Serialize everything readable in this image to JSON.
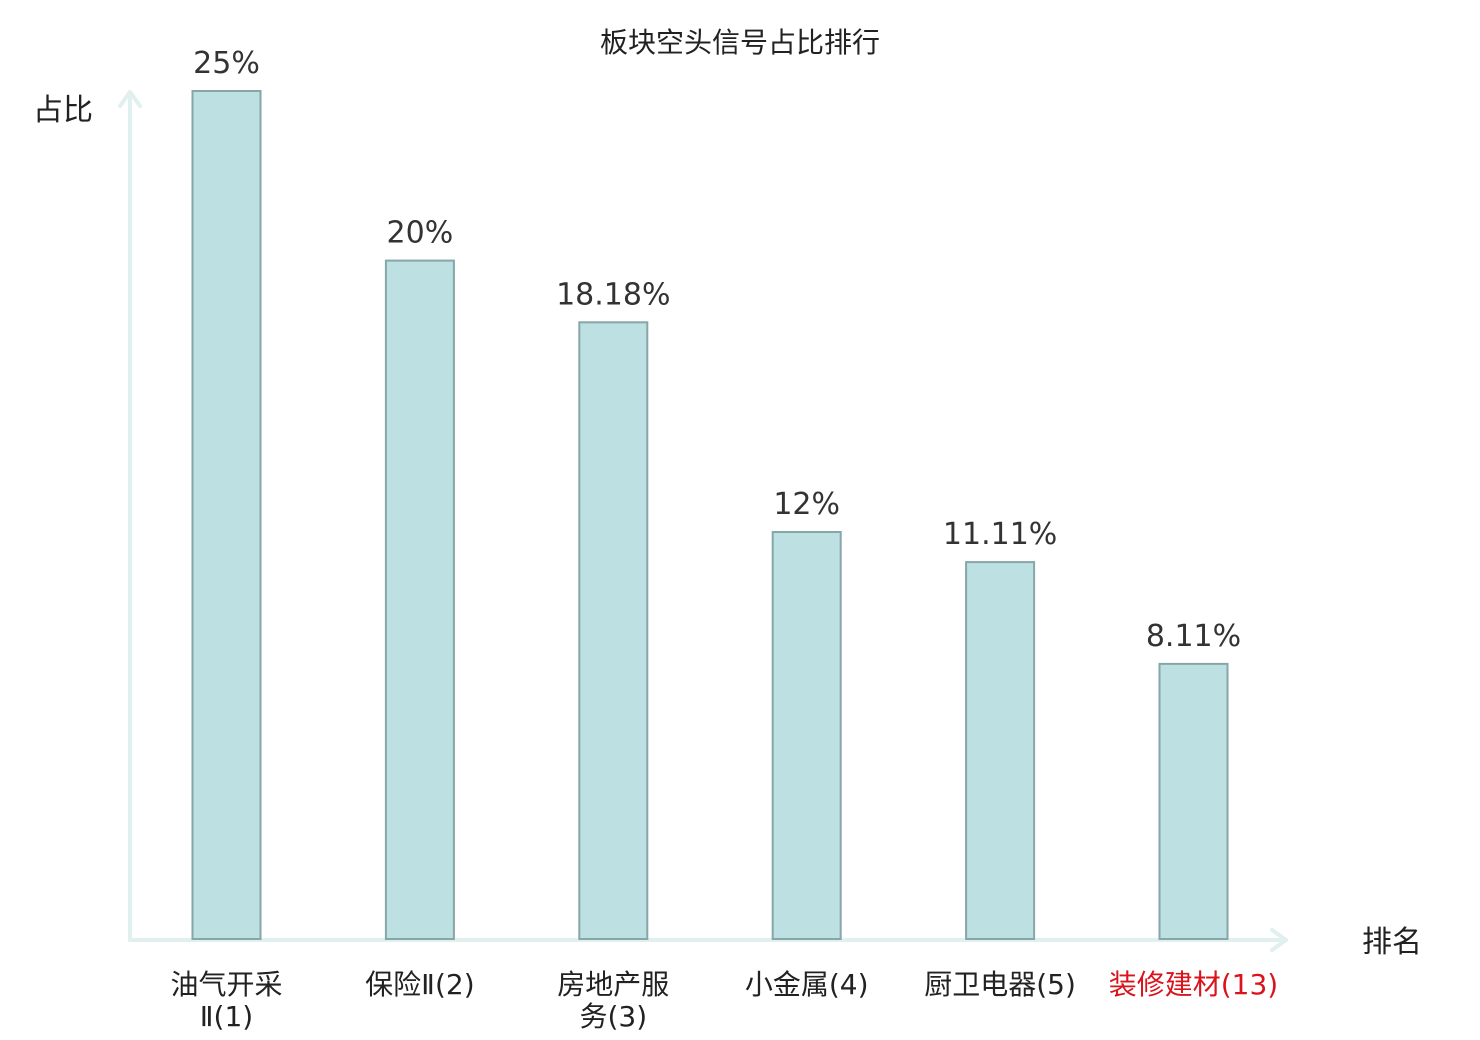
{
  "chart_data": {
    "type": "bar",
    "title": "板块空头信号占比排行",
    "ylabel": "占比",
    "xlabel": "排名",
    "ylim": [
      0,
      25
    ],
    "grid": false,
    "categories": [
      [
        "油气开采",
        "Ⅱ(1)"
      ],
      [
        "保险Ⅱ(2)"
      ],
      [
        "房地产服",
        "务(3)"
      ],
      [
        "小金属(4)"
      ],
      [
        "厨卫电器(5)"
      ],
      [
        "装修建材(13)"
      ]
    ],
    "values": [
      25,
      20,
      18.18,
      12,
      11.11,
      8.11
    ],
    "value_labels": [
      "25%",
      "20%",
      "18.18%",
      "12%",
      "11.11%",
      "8.11%"
    ],
    "highlight_index": 5,
    "colors": {
      "bar_fill": "#bde0e3",
      "bar_stroke": "#86a6a8",
      "axis": "#dff0ef",
      "label_normal": "#222222",
      "label_highlight": "#d9141c"
    }
  }
}
